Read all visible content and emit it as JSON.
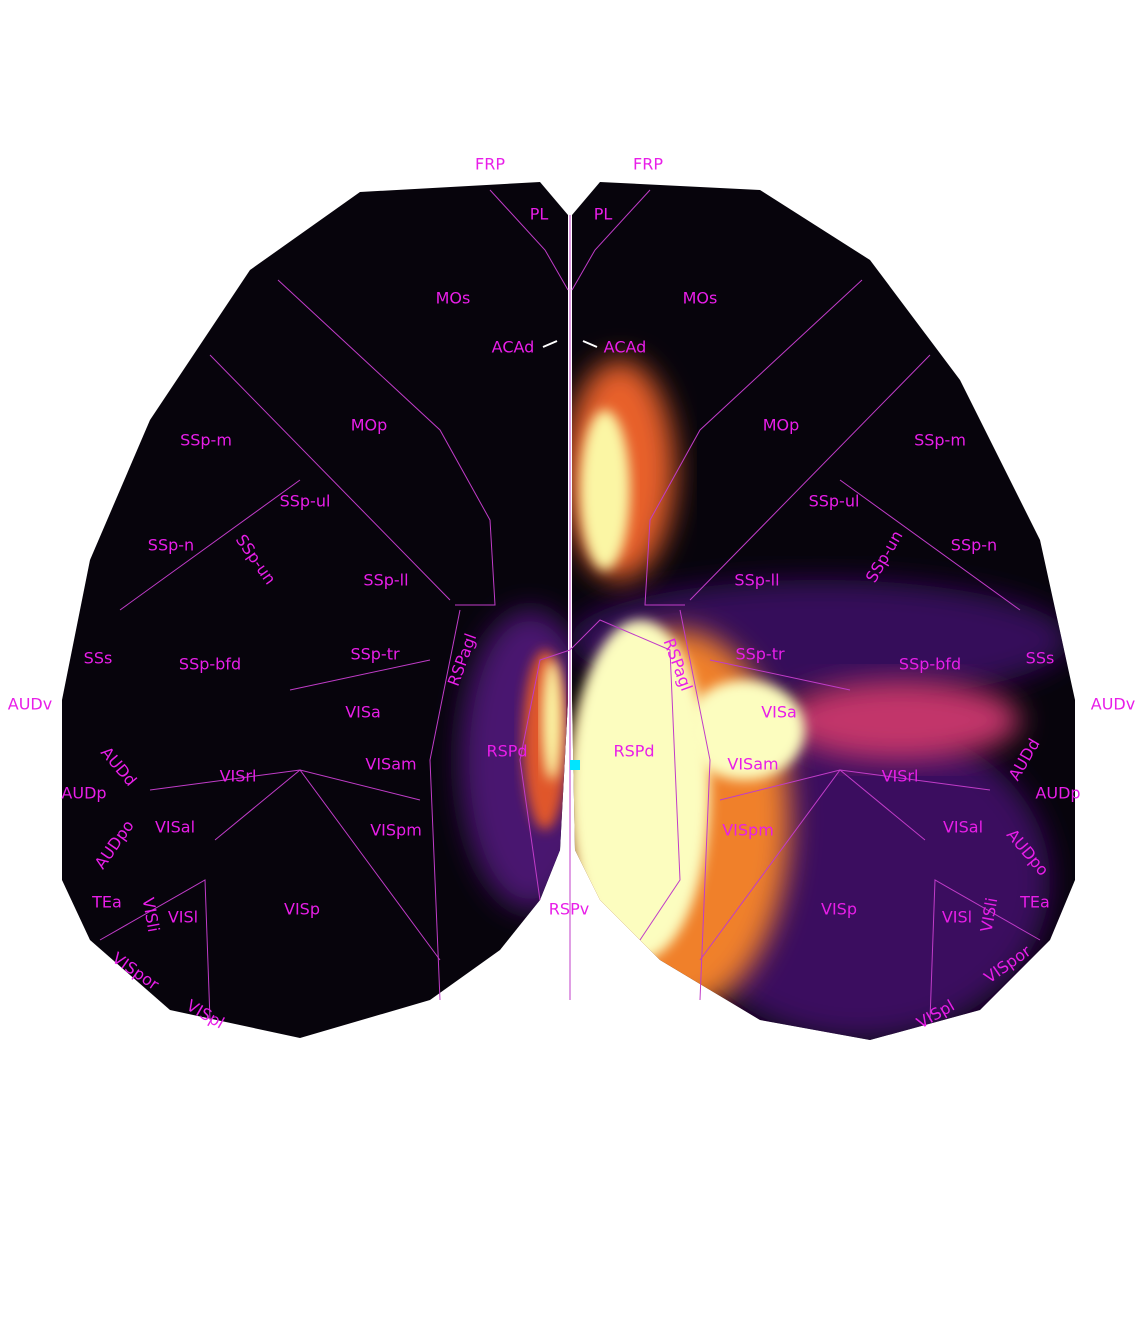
{
  "labels": [
    "FRP",
    "FRP",
    "PL",
    "PL",
    "MOs",
    "MOs",
    "ACAd",
    "ACAd",
    "MOp",
    "MOp",
    "SSp-m",
    "SSp-m",
    "SSp-ul",
    "SSp-ul",
    "SSp-n",
    "SSp-n",
    "SSp-un",
    "SSp-un",
    "SSp-ll",
    "SSp-ll",
    "SSs",
    "SSs",
    "SSp-bfd",
    "SSp-bfd",
    "SSp-tr",
    "SSp-tr",
    "RSPagl",
    "RSPagl",
    "AUDv",
    "AUDv",
    "VISa",
    "VISa",
    "RSPd",
    "RSPd",
    "VISam",
    "VISam",
    "AUDd",
    "AUDd",
    "VISrl",
    "VISrl",
    "AUDp",
    "AUDp",
    "VISpm",
    "VISpm",
    "VISal",
    "VISal",
    "AUDpo",
    "AUDpo",
    "RSPv",
    "TEa",
    "TEa",
    "VISli",
    "VISli",
    "VISl",
    "VISl",
    "VISp",
    "VISp",
    "VISpor",
    "VISpor",
    "VISpl",
    "VISpl"
  ]
}
